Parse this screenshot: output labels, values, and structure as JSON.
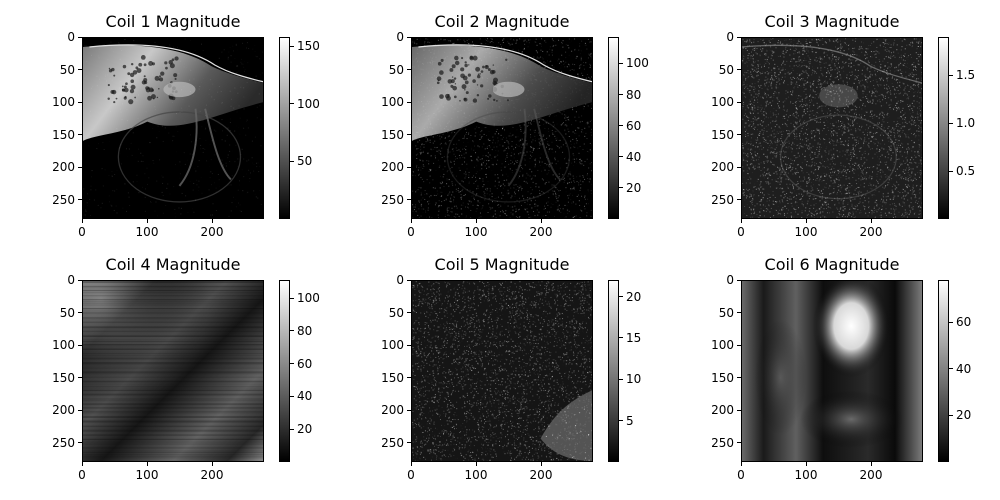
{
  "chart_data": [
    {
      "type": "heatmap",
      "title": "Coil 1 Magnitude",
      "x_ticks": [
        "0",
        "100",
        "200"
      ],
      "y_ticks": [
        "0",
        "50",
        "100",
        "150",
        "200",
        "250"
      ],
      "xlim": [
        0,
        280
      ],
      "ylim": [
        280,
        0
      ],
      "colorbar": {
        "ticks": [
          "50",
          "100",
          "150"
        ],
        "tick_values": [
          50,
          100,
          150
        ],
        "range": [
          0,
          158
        ]
      },
      "content": "anatomy_bright"
    },
    {
      "type": "heatmap",
      "title": "Coil 2 Magnitude",
      "x_ticks": [
        "0",
        "100",
        "200"
      ],
      "y_ticks": [
        "0",
        "50",
        "100",
        "150",
        "200",
        "250"
      ],
      "xlim": [
        0,
        280
      ],
      "ylim": [
        280,
        0
      ],
      "colorbar": {
        "ticks": [
          "20",
          "40",
          "60",
          "80",
          "100"
        ],
        "tick_values": [
          20,
          40,
          60,
          80,
          100
        ],
        "range": [
          0,
          117
        ]
      },
      "content": "anatomy_noisy"
    },
    {
      "type": "heatmap",
      "title": "Coil 3 Magnitude",
      "x_ticks": [
        "0",
        "100",
        "200"
      ],
      "y_ticks": [
        "0",
        "50",
        "100",
        "150",
        "200",
        "250"
      ],
      "xlim": [
        0,
        280
      ],
      "ylim": [
        280,
        0
      ],
      "colorbar": {
        "ticks": [
          "0.5",
          "1.0",
          "1.5"
        ],
        "tick_values": [
          0.5,
          1.0,
          1.5
        ],
        "range": [
          0,
          1.9
        ]
      },
      "content": "noise_faint_anatomy"
    },
    {
      "type": "heatmap",
      "title": "Coil 4 Magnitude",
      "x_ticks": [
        "0",
        "100",
        "200"
      ],
      "y_ticks": [
        "0",
        "50",
        "100",
        "150",
        "200",
        "250"
      ],
      "xlim": [
        0,
        280
      ],
      "ylim": [
        280,
        0
      ],
      "colorbar": {
        "ticks": [
          "20",
          "40",
          "60",
          "80",
          "100"
        ],
        "tick_values": [
          20,
          40,
          60,
          80,
          100
        ],
        "range": [
          0,
          111
        ]
      },
      "content": "striped_bands"
    },
    {
      "type": "heatmap",
      "title": "Coil 5 Magnitude",
      "x_ticks": [
        "0",
        "100",
        "200"
      ],
      "y_ticks": [
        "0",
        "50",
        "100",
        "150",
        "200",
        "250"
      ],
      "xlim": [
        0,
        280
      ],
      "ylim": [
        280,
        0
      ],
      "colorbar": {
        "ticks": [
          "5",
          "10",
          "15",
          "20"
        ],
        "tick_values": [
          5,
          10,
          15,
          20
        ],
        "range": [
          0,
          22
        ]
      },
      "content": "noise_corner_patch"
    },
    {
      "type": "heatmap",
      "title": "Coil 6 Magnitude",
      "x_ticks": [
        "0",
        "100",
        "200"
      ],
      "y_ticks": [
        "0",
        "50",
        "100",
        "150",
        "200",
        "250"
      ],
      "xlim": [
        0,
        280
      ],
      "ylim": [
        280,
        0
      ],
      "colorbar": {
        "ticks": [
          "20",
          "40",
          "60"
        ],
        "tick_values": [
          20,
          40,
          60
        ],
        "range": [
          0,
          78
        ]
      },
      "content": "smooth_blob"
    }
  ]
}
